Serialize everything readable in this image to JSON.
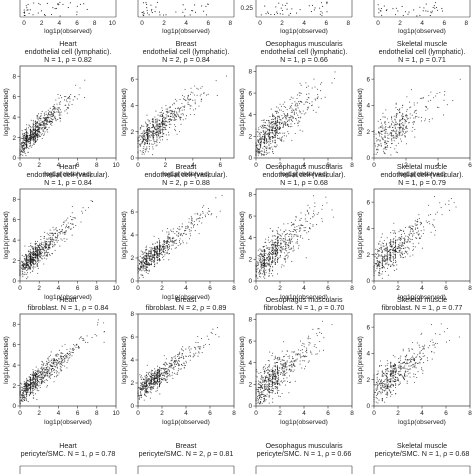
{
  "figure": {
    "column_labels": [
      "Heart",
      "Breast",
      "Oesophagus muscularis",
      "Skeletal muscle"
    ],
    "row_labels": [
      "endothelial cell (lymphatic)",
      "endothelial cell (vascular)",
      "fibroblast",
      "pericyte/SMC"
    ]
  },
  "chart_data": [
    {
      "type": "scatter",
      "title_lines": [
        "Heart",
        "endothelial cell (lymphatic)."
      ],
      "stats": "N = 1, ρ = 0.82",
      "xlabel": "log1p(observed)",
      "ylabel": "log1p(predicted)",
      "xlim": [
        0,
        10
      ],
      "ylim": [
        0,
        9
      ],
      "xticks": [
        0,
        2,
        4,
        6,
        8,
        10
      ],
      "yticks": [
        0,
        2,
        4,
        6,
        8
      ],
      "rho": 0.82,
      "n_points": 700,
      "x_max": 7.5,
      "y_max": 8
    },
    {
      "type": "scatter",
      "title_lines": [
        "Breast",
        "endothelial cell (lymphatic)."
      ],
      "stats": "N = 2, ρ = 0.84",
      "xlabel": "log1p(observed)",
      "ylabel": "log1p(predicted)",
      "xlim": [
        0,
        7
      ],
      "ylim": [
        0,
        7
      ],
      "xticks": [
        0,
        2,
        4,
        6
      ],
      "yticks": [
        0,
        2,
        4,
        6
      ],
      "rho": 0.84,
      "n_points": 600,
      "x_max": 6.5,
      "y_max": 6.6
    },
    {
      "type": "scatter",
      "title_lines": [
        "Oesophagus muscularis",
        "endothelial cell (lymphatic)."
      ],
      "stats": "N = 1, ρ = 0.66",
      "xlabel": "log1p(observed)",
      "ylabel": "log1p(predicted)",
      "xlim": [
        0,
        8
      ],
      "ylim": [
        0,
        8.5
      ],
      "xticks": [
        0,
        2,
        4,
        6,
        8
      ],
      "yticks": [
        0,
        2,
        4,
        6,
        8
      ],
      "rho": 0.66,
      "n_points": 600,
      "x_max": 7,
      "y_max": 8
    },
    {
      "type": "scatter",
      "title_lines": [
        "Skeletal muscle",
        "endothelial cell (lymphatic)."
      ],
      "stats": "N = 1, ρ = 0.71",
      "xlabel": "log1p(observed)",
      "ylabel": "log1p(predicted)",
      "xlim": [
        0,
        6
      ],
      "ylim": [
        0,
        7
      ],
      "xticks": [
        0,
        2,
        4,
        6
      ],
      "yticks": [
        0,
        2,
        4,
        6
      ],
      "rho": 0.71,
      "n_points": 350,
      "x_max": 5.5,
      "y_max": 6
    },
    {
      "type": "scatter",
      "title_lines": [
        "Heart",
        "endothelial cell (vascular)."
      ],
      "stats": "N = 1, ρ = 0.84",
      "xlabel": "log1p(observed)",
      "ylabel": "log1p(predicted)",
      "xlim": [
        0,
        10
      ],
      "ylim": [
        0,
        9
      ],
      "xticks": [
        0,
        2,
        4,
        6,
        8,
        10
      ],
      "yticks": [
        0,
        2,
        4,
        6,
        8
      ],
      "rho": 0.84,
      "n_points": 700,
      "x_max": 8,
      "y_max": 8
    },
    {
      "type": "scatter",
      "title_lines": [
        "Breast",
        "endothelial cell (vascular)."
      ],
      "stats": "N = 2, ρ = 0.88",
      "xlabel": "log1p(observed)",
      "ylabel": "log1p(predicted)",
      "xlim": [
        0,
        8
      ],
      "ylim": [
        0,
        8
      ],
      "xticks": [
        0,
        2,
        4,
        6,
        8
      ],
      "yticks": [
        0,
        2,
        4,
        6
      ],
      "rho": 0.88,
      "n_points": 600,
      "x_max": 7.5,
      "y_max": 7.5
    },
    {
      "type": "scatter",
      "title_lines": [
        "Oesophagus muscularis",
        "endothelial cell (vascular)."
      ],
      "stats": "N = 1, ρ = 0.68",
      "xlabel": "log1p(observed)",
      "ylabel": "log1p(predicted)",
      "xlim": [
        0,
        8
      ],
      "ylim": [
        0,
        8.5
      ],
      "xticks": [
        0,
        2,
        4,
        6,
        8
      ],
      "yticks": [
        0,
        2,
        4,
        6,
        8
      ],
      "rho": 0.68,
      "n_points": 600,
      "x_max": 7,
      "y_max": 8
    },
    {
      "type": "scatter",
      "title_lines": [
        "Skeletal muscle",
        "endothelial cell (vascular)."
      ],
      "stats": "N = 1, ρ = 0.79",
      "xlabel": "log1p(observed)",
      "ylabel": "log1p(predicted)",
      "xlim": [
        0,
        8
      ],
      "ylim": [
        0,
        7
      ],
      "xticks": [
        0,
        2,
        4,
        6,
        8
      ],
      "yticks": [
        0,
        2,
        4,
        6
      ],
      "rho": 0.79,
      "n_points": 500,
      "x_max": 7,
      "y_max": 6.5
    },
    {
      "type": "scatter",
      "title_lines": [
        "Heart",
        "fibroblast. N = 1, ρ = 0.84"
      ],
      "stats": "",
      "xlabel": "log1p(observed)",
      "ylabel": "log1p(predicted)",
      "xlim": [
        0,
        10
      ],
      "ylim": [
        0,
        9
      ],
      "xticks": [
        0,
        2,
        4,
        6,
        8,
        10
      ],
      "yticks": [
        0,
        2,
        4,
        6,
        8
      ],
      "rho": 0.84,
      "n_points": 700,
      "x_max": 9,
      "y_max": 8.5
    },
    {
      "type": "scatter",
      "title_lines": [
        "Breast",
        "fibroblast. N = 2, ρ = 0.89"
      ],
      "stats": "",
      "xlabel": "log1p(observed)",
      "ylabel": "log1p(predicted)",
      "xlim": [
        0,
        8
      ],
      "ylim": [
        0,
        8
      ],
      "xticks": [
        0,
        2,
        4,
        6,
        8
      ],
      "yticks": [
        0,
        2,
        4,
        6,
        8
      ],
      "rho": 0.89,
      "n_points": 600,
      "x_max": 7.5,
      "y_max": 7.5
    },
    {
      "type": "scatter",
      "title_lines": [
        "Oesophagus muscularis",
        "fibroblast. N = 1, ρ = 0.70"
      ],
      "stats": "",
      "xlabel": "log1p(observed)",
      "ylabel": "log1p(predicted)",
      "xlim": [
        0,
        8
      ],
      "ylim": [
        0,
        8.5
      ],
      "xticks": [
        0,
        2,
        4,
        6,
        8
      ],
      "yticks": [
        0,
        2,
        4,
        6,
        8
      ],
      "rho": 0.7,
      "n_points": 600,
      "x_max": 7,
      "y_max": 8
    },
    {
      "type": "scatter",
      "title_lines": [
        "Skeletal muscle",
        "fibroblast. N = 1, ρ = 0.77"
      ],
      "stats": "",
      "xlabel": "log1p(observed)",
      "ylabel": "log1p(predicted)",
      "xlim": [
        0,
        8
      ],
      "ylim": [
        0,
        7
      ],
      "xticks": [
        0,
        2,
        4,
        6,
        8
      ],
      "yticks": [
        0,
        2,
        4,
        6
      ],
      "rho": 0.77,
      "n_points": 500,
      "x_max": 7.5,
      "y_max": 6.5
    }
  ],
  "bottom_captions": [
    {
      "title_lines": [
        "Heart",
        "pericyte/SMC. N = 1, ρ = 0.78"
      ]
    },
    {
      "title_lines": [
        "Breast",
        "pericyte/SMC. N = 2, ρ = 0.81"
      ]
    },
    {
      "title_lines": [
        "Oesophagus muscularis",
        "pericyte/SMC. N = 1, ρ = 0.66"
      ]
    },
    {
      "title_lines": [
        "Skeletal muscle",
        "pericyte/SMC. N = 1, ρ = 0.68"
      ]
    }
  ],
  "top_partial": {
    "xticks": [
      [
        "0",
        "2",
        "4",
        "6",
        "8",
        "10"
      ],
      [
        "0",
        "2",
        "4",
        "6",
        "8"
      ],
      [
        "0",
        "2",
        "4",
        "6",
        "8"
      ],
      [
        "0",
        "2",
        "4",
        "6",
        "8"
      ]
    ],
    "xlabel": "log1p(observed)",
    "extra_tick": "0.25"
  },
  "colors": {
    "points": "#1a1a1a",
    "frame": "#333333",
    "background": "#ffffff"
  }
}
